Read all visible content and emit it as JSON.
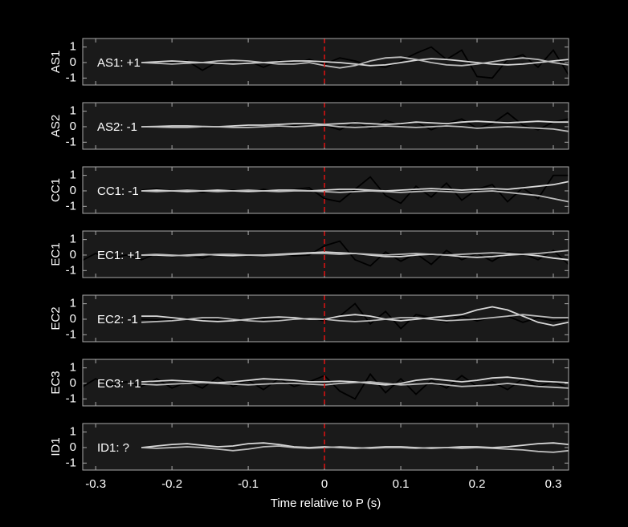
{
  "chart_data": [
    {
      "type": "line",
      "ylabel": "AS1",
      "annotation": "AS1: +1",
      "annotation_color": "#cc1111",
      "vline": 0,
      "vline_color": "#dd1111",
      "x": [
        -0.32,
        -0.3,
        -0.28,
        -0.26,
        -0.24,
        -0.22,
        -0.2,
        -0.18,
        -0.16,
        -0.14,
        -0.12,
        -0.1,
        -0.08,
        -0.06,
        -0.04,
        -0.02,
        0,
        0.02,
        0.04,
        0.06,
        0.08,
        0.1,
        0.12,
        0.14,
        0.16,
        0.18,
        0.2,
        0.22,
        0.24,
        0.26,
        0.28,
        0.3,
        0.32
      ],
      "series": [
        {
          "color": "#000000",
          "values": [
            null,
            null,
            null,
            null,
            0,
            0.05,
            -0.05,
            0.1,
            -0.5,
            0.05,
            -0.1,
            0.1,
            -0.3,
            0.1,
            -0.1,
            0.2,
            -0.1,
            0.3,
            0.1,
            -0.2,
            -0.3,
            0.1,
            0.6,
            1.0,
            0.2,
            0.8,
            -0.9,
            -1.0,
            0.2,
            0.5,
            -0.3,
            0.8,
            -0.8
          ]
        },
        {
          "color": "#d8d8d8",
          "values": [
            null,
            null,
            null,
            null,
            0,
            0.05,
            0.1,
            0.05,
            0,
            -0.05,
            -0.1,
            -0.05,
            0,
            0.05,
            0.1,
            0.1,
            0.05,
            0,
            -0.1,
            -0.2,
            -0.15,
            0,
            0.15,
            0.25,
            0.2,
            0.1,
            0,
            -0.1,
            -0.15,
            -0.1,
            0,
            0.1,
            0.2
          ]
        },
        {
          "color": "#bbbbbb",
          "values": [
            null,
            null,
            null,
            null,
            0,
            -0.05,
            -0.1,
            -0.05,
            0,
            0.1,
            0.15,
            0.1,
            0,
            -0.1,
            -0.1,
            0,
            -0.2,
            -0.35,
            -0.2,
            0.1,
            0.3,
            0.35,
            0.2,
            0,
            -0.15,
            -0.2,
            -0.1,
            0.05,
            0.2,
            0.3,
            0.2,
            0,
            -0.15
          ]
        }
      ]
    },
    {
      "type": "line",
      "ylabel": "AS2",
      "annotation": "AS2: -1",
      "annotation_color": "#1a1aa8",
      "vline": 0,
      "vline_color": "#dd1111",
      "x": [
        -0.32,
        -0.3,
        -0.28,
        -0.26,
        -0.24,
        -0.22,
        -0.2,
        -0.18,
        -0.16,
        -0.14,
        -0.12,
        -0.1,
        -0.08,
        -0.06,
        -0.04,
        -0.02,
        0,
        0.02,
        0.04,
        0.06,
        0.08,
        0.1,
        0.12,
        0.14,
        0.16,
        0.18,
        0.2,
        0.22,
        0.24,
        0.26,
        0.28,
        0.3,
        0.32
      ],
      "series": [
        {
          "color": "#000000",
          "values": [
            null,
            null,
            null,
            null,
            0,
            -0.05,
            0,
            0.05,
            -0.05,
            0,
            0.05,
            0.1,
            0,
            0.1,
            0.05,
            0.15,
            0.1,
            -0.2,
            0.3,
            -0.1,
            0.4,
            0.1,
            0.3,
            -0.2,
            0.2,
            0.5,
            -0.1,
            0.2,
            0.9,
            0.1,
            -0.2,
            0.3,
            0.5
          ]
        },
        {
          "color": "#d8d8d8",
          "values": [
            null,
            null,
            null,
            null,
            0,
            0.02,
            0.05,
            0.05,
            0.02,
            0,
            0.05,
            0.1,
            0.1,
            0.15,
            0.2,
            0.2,
            0.15,
            0.2,
            0.25,
            0.2,
            0.15,
            0.2,
            0.3,
            0.25,
            0.2,
            0.3,
            0.35,
            0.3,
            0.25,
            0.3,
            0.35,
            0.3,
            0.3
          ]
        },
        {
          "color": "#bbbbbb",
          "values": [
            null,
            null,
            null,
            null,
            0,
            -0.02,
            -0.05,
            -0.05,
            0,
            0,
            -0.05,
            -0.05,
            0,
            0.05,
            0,
            0.05,
            0.1,
            0,
            -0.05,
            0,
            0.05,
            0,
            -0.05,
            0,
            0.05,
            0,
            -0.1,
            -0.05,
            0,
            -0.05,
            -0.1,
            -0.15,
            -0.3
          ]
        }
      ]
    },
    {
      "type": "line",
      "ylabel": "CC1",
      "annotation": "CC1: -1",
      "annotation_color": "#1a1aa8",
      "vline": 0,
      "vline_color": "#dd1111",
      "x": [
        -0.32,
        -0.3,
        -0.28,
        -0.26,
        -0.24,
        -0.22,
        -0.2,
        -0.18,
        -0.16,
        -0.14,
        -0.12,
        -0.1,
        -0.08,
        -0.06,
        -0.04,
        -0.02,
        0,
        0.02,
        0.04,
        0.06,
        0.08,
        0.1,
        0.12,
        0.14,
        0.16,
        0.18,
        0.2,
        0.22,
        0.24,
        0.26,
        0.28,
        0.3,
        0.32
      ],
      "series": [
        {
          "color": "#000000",
          "values": [
            null,
            null,
            null,
            null,
            0.05,
            0.15,
            0,
            0.1,
            -0.1,
            0,
            0.05,
            -0.1,
            0.1,
            -0.05,
            0.1,
            0.2,
            -0.5,
            -0.7,
            0.1,
            0.9,
            -0.3,
            -0.8,
            0.3,
            -0.4,
            0.5,
            -0.6,
            0.1,
            0.4,
            -0.7,
            0.2,
            -0.5,
            1.0,
            1.0
          ]
        },
        {
          "color": "#d8d8d8",
          "values": [
            null,
            null,
            null,
            null,
            0,
            0.05,
            0,
            -0.05,
            0,
            0.05,
            0,
            -0.05,
            0,
            0.05,
            0.05,
            0,
            0.05,
            0.1,
            0.1,
            0.05,
            0,
            0.05,
            0.1,
            0.15,
            0.1,
            0.05,
            0.1,
            0.15,
            0.1,
            0.2,
            0.3,
            0.4,
            0.6
          ]
        },
        {
          "color": "#bbbbbb",
          "values": [
            null,
            null,
            null,
            null,
            0,
            -0.05,
            0,
            0.05,
            0,
            -0.05,
            0,
            0.05,
            0,
            -0.05,
            0,
            0,
            -0.05,
            -0.1,
            -0.05,
            0,
            -0.05,
            -0.1,
            -0.05,
            0,
            -0.05,
            -0.1,
            -0.05,
            0,
            -0.1,
            -0.2,
            -0.3,
            -0.5,
            -0.7
          ]
        }
      ]
    },
    {
      "type": "line",
      "ylabel": "EC1",
      "annotation": "EC1: +1",
      "annotation_color": "#cc1111",
      "vline": 0,
      "vline_color": "#dd1111",
      "x": [
        -0.32,
        -0.3,
        -0.28,
        -0.26,
        -0.24,
        -0.22,
        -0.2,
        -0.18,
        -0.16,
        -0.14,
        -0.12,
        -0.1,
        -0.08,
        -0.06,
        -0.04,
        -0.02,
        0,
        0.02,
        0.04,
        0.06,
        0.08,
        0.1,
        0.12,
        0.14,
        0.16,
        0.18,
        0.2,
        0.22,
        0.24,
        0.26,
        0.28,
        0.3,
        0.32
      ],
      "series": [
        {
          "color": "#000000",
          "values": [
            -0.4,
            0.1,
            -0.2,
            0,
            -0.3,
            0.1,
            -0.1,
            0,
            -0.2,
            0.1,
            -0.1,
            0,
            -0.1,
            0.05,
            -0.05,
            0,
            0.6,
            0.9,
            -0.3,
            -0.7,
            0.2,
            -0.4,
            0.1,
            -0.6,
            0.3,
            -0.3,
            0.1,
            -0.4,
            0.2,
            0.1,
            -0.3,
            0.3,
            -0.6
          ]
        },
        {
          "color": "#d8d8d8",
          "values": [
            null,
            null,
            null,
            null,
            0,
            0,
            -0.05,
            0,
            0.05,
            0,
            -0.05,
            0,
            0,
            0.05,
            0.1,
            0.15,
            0.2,
            0.15,
            0.1,
            0,
            -0.1,
            -0.1,
            0,
            0.05,
            0,
            -0.1,
            -0.15,
            -0.1,
            0,
            0.05,
            -0.05,
            -0.2,
            -0.3
          ]
        },
        {
          "color": "#bbbbbb",
          "values": [
            null,
            null,
            null,
            null,
            0,
            0.05,
            0,
            -0.05,
            0,
            0.05,
            0.05,
            0,
            -0.05,
            0,
            0.05,
            0.1,
            0.1,
            0.05,
            0.1,
            0.05,
            0,
            0.05,
            0.1,
            0.05,
            0,
            0.05,
            0.1,
            0.15,
            0.1,
            0.05,
            0.1,
            0.2,
            0.3
          ]
        }
      ]
    },
    {
      "type": "line",
      "ylabel": "EC2",
      "annotation": "EC2: -1",
      "annotation_color": "#1a1aa8",
      "vline": 0,
      "vline_color": "#dd1111",
      "x": [
        -0.32,
        -0.3,
        -0.28,
        -0.26,
        -0.24,
        -0.22,
        -0.2,
        -0.18,
        -0.16,
        -0.14,
        -0.12,
        -0.1,
        -0.08,
        -0.06,
        -0.04,
        -0.02,
        0,
        0.02,
        0.04,
        0.06,
        0.08,
        0.1,
        0.12,
        0.14,
        0.16,
        0.18,
        0.2,
        0.22,
        0.24,
        0.26,
        0.28,
        0.3,
        0.32
      ],
      "series": [
        {
          "color": "#000000",
          "values": [
            null,
            null,
            null,
            null,
            0,
            -0.05,
            0,
            0.05,
            -0.05,
            0,
            0.05,
            -0.1,
            0,
            -0.05,
            0.05,
            0.1,
            -0.1,
            0.2,
            1.0,
            -0.3,
            0.5,
            -0.6,
            0.3,
            0.1,
            -0.2,
            0.2,
            -0.1,
            0.1,
            0.2,
            -0.2,
            0.1,
            -0.1,
            0
          ]
        },
        {
          "color": "#d8d8d8",
          "values": [
            null,
            null,
            null,
            null,
            0.2,
            0.2,
            0.1,
            0,
            -0.1,
            -0.15,
            -0.1,
            0,
            0.1,
            0.15,
            0.1,
            0,
            0,
            0.2,
            0.3,
            0.2,
            0,
            -0.1,
            0,
            0.1,
            0.2,
            0.3,
            0.6,
            0.8,
            0.6,
            0.2,
            -0.2,
            -0.4,
            -0.2
          ]
        },
        {
          "color": "#bbbbbb",
          "values": [
            null,
            null,
            null,
            null,
            -0.2,
            -0.15,
            -0.1,
            0,
            0.1,
            0.1,
            0,
            -0.1,
            -0.15,
            -0.1,
            0,
            0.05,
            0,
            -0.1,
            -0.15,
            -0.1,
            0,
            0.1,
            0.1,
            0,
            -0.1,
            -0.05,
            0,
            0.1,
            0.2,
            0.3,
            0.2,
            0.1,
            0.1
          ]
        }
      ]
    },
    {
      "type": "line",
      "ylabel": "EC3",
      "annotation": "EC3: +1",
      "annotation_color": "#cc1111",
      "vline": 0,
      "vline_color": "#dd1111",
      "x": [
        -0.32,
        -0.3,
        -0.28,
        -0.26,
        -0.24,
        -0.22,
        -0.2,
        -0.18,
        -0.16,
        -0.14,
        -0.12,
        -0.1,
        -0.08,
        -0.06,
        -0.04,
        -0.02,
        0,
        0.02,
        0.04,
        0.06,
        0.08,
        0.1,
        0.12,
        0.14,
        0.16,
        0.18,
        0.2,
        0.22,
        0.24,
        0.26,
        0.28,
        0.3,
        0.32
      ],
      "series": [
        {
          "color": "#000000",
          "values": [
            -0.3,
            0.3,
            -0.1,
            0.1,
            -0.2,
            0.3,
            -0.3,
            0.1,
            -0.3,
            0.4,
            -0.2,
            0.2,
            -0.4,
            0.3,
            -0.2,
            0.1,
            0.5,
            -0.5,
            -1.0,
            0.6,
            -0.6,
            0.3,
            -0.7,
            0.2,
            -0.3,
            0.5,
            -0.2,
            0.1,
            -0.4,
            0.3,
            -0.2,
            0.1,
            -0.3
          ]
        },
        {
          "color": "#d8d8d8",
          "values": [
            null,
            null,
            null,
            null,
            0.1,
            0.15,
            0.2,
            0.15,
            0.1,
            0.05,
            0.1,
            0.2,
            0.3,
            0.25,
            0.2,
            0.1,
            0.1,
            0.15,
            0.1,
            0,
            -0.1,
            0,
            0.2,
            0.3,
            0.2,
            0.1,
            0.2,
            0.35,
            0.4,
            0.3,
            0.15,
            0.1,
            0.05
          ]
        },
        {
          "color": "#bbbbbb",
          "values": [
            null,
            null,
            null,
            null,
            -0.05,
            -0.1,
            -0.05,
            0,
            0.05,
            0,
            -0.05,
            -0.1,
            -0.05,
            0,
            0,
            -0.05,
            -0.1,
            0,
            0.05,
            0.1,
            0,
            -0.1,
            -0.05,
            0,
            -0.1,
            -0.2,
            -0.15,
            -0.1,
            0,
            -0.1,
            -0.2,
            -0.25,
            -0.3
          ]
        }
      ]
    },
    {
      "type": "line",
      "ylabel": "ID1",
      "annotation": "ID1: ?",
      "annotation_color": "#9a9a9a",
      "vline": 0,
      "vline_color": "#dd1111",
      "xlabel": "Time relative to P (s)",
      "show_xticklabels": true,
      "x": [
        -0.32,
        -0.3,
        -0.28,
        -0.26,
        -0.24,
        -0.22,
        -0.2,
        -0.18,
        -0.16,
        -0.14,
        -0.12,
        -0.1,
        -0.08,
        -0.06,
        -0.04,
        -0.02,
        0,
        0.02,
        0.04,
        0.06,
        0.08,
        0.1,
        0.12,
        0.14,
        0.16,
        0.18,
        0.2,
        0.22,
        0.24,
        0.26,
        0.28,
        0.3,
        0.32
      ],
      "series": [
        {
          "color": "#d8d8d8",
          "values": [
            null,
            null,
            null,
            null,
            0,
            0.1,
            0.2,
            0.25,
            0.15,
            0.05,
            0.1,
            0.25,
            0.3,
            0.2,
            0.05,
            0,
            0.05,
            0,
            -0.05,
            0,
            0.05,
            0.05,
            0,
            -0.05,
            0,
            0.05,
            0.05,
            0,
            0.05,
            0.15,
            0.25,
            0.3,
            0.2
          ]
        },
        {
          "color": "#bbbbbb",
          "values": [
            null,
            null,
            null,
            null,
            0,
            -0.05,
            0,
            0.05,
            0,
            -0.1,
            -0.2,
            -0.1,
            0.05,
            0.1,
            0,
            -0.05,
            0,
            0.05,
            0,
            -0.05,
            0,
            0,
            -0.05,
            0,
            0,
            -0.05,
            0,
            -0.05,
            -0.1,
            -0.15,
            -0.25,
            -0.3,
            -0.2
          ]
        }
      ]
    }
  ],
  "shared": {
    "xlim": [
      -0.317,
      0.32
    ],
    "xticks": [
      -0.3,
      -0.2,
      -0.1,
      0,
      0.1,
      0.2,
      0.3
    ],
    "ylim": [
      -1.45,
      1.55
    ],
    "yticks": [
      -1,
      0,
      1
    ]
  }
}
